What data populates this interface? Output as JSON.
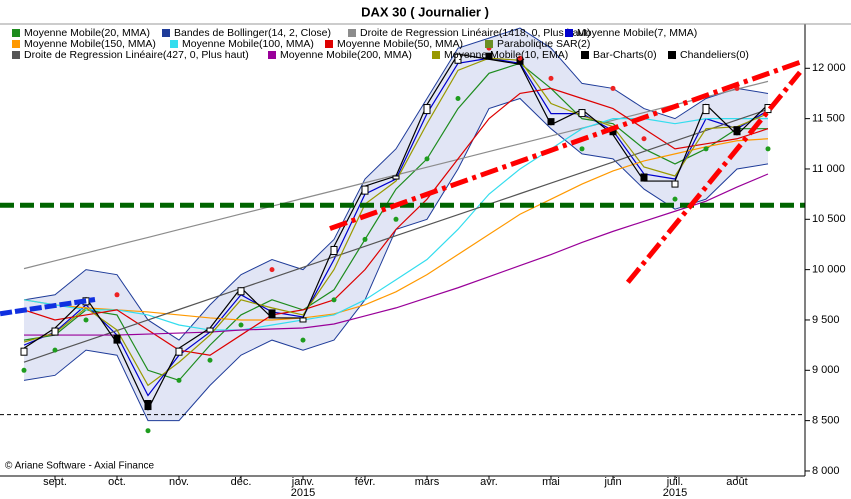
{
  "chart_data": {
    "type": "line",
    "title": "DAX 30  ( Journalier )",
    "credit": "© Ariane Software - Axial Finance",
    "categories": [
      null,
      "sept.",
      null,
      "oct.",
      null,
      "nov.",
      null,
      "déc.",
      null,
      "janv.\n2015",
      null,
      "févr.",
      null,
      "mars",
      null,
      "avr.",
      null,
      "mai",
      null,
      "juin",
      null,
      "juil.\n2015",
      null,
      "août",
      null
    ],
    "ylim": [
      7950,
      12440
    ],
    "yticks": [
      {
        "value": 8000,
        "label": "8 000"
      },
      {
        "value": 8500,
        "label": "8 500"
      },
      {
        "value": 9000,
        "label": "9 000"
      },
      {
        "value": 9500,
        "label": "9 500"
      },
      {
        "value": 10000,
        "label": "10 000"
      },
      {
        "value": 10500,
        "label": "10 500"
      },
      {
        "value": 11000,
        "label": "11 000"
      },
      {
        "value": 11500,
        "label": "11 500"
      },
      {
        "value": 12000,
        "label": "12 000"
      }
    ],
    "grid": false,
    "series": [
      {
        "name": "Moyenne Mobile(20, MMA)",
        "color": "#1e8c1e",
        "style": "line",
        "values": [
          9300,
          9350,
          9600,
          9550,
          9000,
          8900,
          9250,
          9550,
          9700,
          9600,
          9800,
          10300,
          10800,
          11100,
          11600,
          11950,
          12050,
          11800,
          11500,
          11450,
          11200,
          11050,
          11200,
          11400,
          11400
        ]
      },
      {
        "name": "Bandes de Bollinger(14, 2, Close)",
        "color": "#1f3c99",
        "style": "band",
        "upper": [
          9700,
          9750,
          10000,
          9950,
          9500,
          9300,
          9650,
          9950,
          10100,
          10000,
          10300,
          10900,
          11200,
          11700,
          12200,
          12300,
          12400,
          12200,
          11850,
          11800,
          11600,
          11500,
          11700,
          11800,
          11750
        ],
        "lower": [
          8900,
          8950,
          9200,
          9150,
          8500,
          8500,
          8850,
          9150,
          9300,
          9200,
          9300,
          9700,
          10400,
          10500,
          11000,
          11600,
          11700,
          11400,
          11150,
          11100,
          10800,
          10600,
          10700,
          11000,
          11050
        ]
      },
      {
        "name": "Droite de Regression Linéaire(1418, 0, Plus haut)",
        "color": "#8c8c8c",
        "style": "line",
        "values": [
          10010,
          10088,
          10165,
          10243,
          10320,
          10398,
          10475,
          10553,
          10630,
          10708,
          10785,
          10863,
          10940,
          11018,
          11095,
          11173,
          11250,
          11328,
          11405,
          11483,
          11560,
          11638,
          11715,
          11793,
          11870
        ]
      },
      {
        "name": "Moyenne Mobile(7, MMA)",
        "color": "#0000cc",
        "style": "line",
        "values": [
          9250,
          9380,
          9650,
          9350,
          8750,
          9150,
          9380,
          9750,
          9580,
          9530,
          10100,
          10750,
          10900,
          11550,
          12050,
          12100,
          12050,
          11550,
          11550,
          11380,
          10950,
          10900,
          11500,
          11400,
          11580
        ]
      },
      {
        "name": "Moyenne Mobile(150, MMA)",
        "color": "#ff9900",
        "style": "line",
        "values": [
          9700,
          9650,
          9620,
          9600,
          9580,
          9550,
          9520,
          9500,
          9500,
          9520,
          9560,
          9650,
          9780,
          9950,
          10150,
          10350,
          10550,
          10700,
          10850,
          10980,
          11080,
          11150,
          11220,
          11280,
          11300
        ]
      },
      {
        "name": "Moyenne Mobile(100, MMA)",
        "color": "#33ddee",
        "style": "line",
        "values": [
          9700,
          9650,
          9600,
          9600,
          9550,
          9450,
          9400,
          9400,
          9450,
          9500,
          9550,
          9700,
          9900,
          10100,
          10400,
          10750,
          11000,
          11200,
          11400,
          11500,
          11500,
          11450,
          11500,
          11500,
          11500
        ]
      },
      {
        "name": "Moyenne Mobile(50, MMA)",
        "color": "#dd0000",
        "style": "line",
        "values": [
          9600,
          9500,
          9550,
          9600,
          9400,
          9200,
          9150,
          9350,
          9550,
          9600,
          9700,
          10000,
          10400,
          10700,
          11100,
          11500,
          11750,
          11800,
          11700,
          11600,
          11400,
          11200,
          11250,
          11300,
          11400
        ]
      },
      {
        "name": "Parabolique SAR(2)",
        "color": "#6b8e23",
        "style": "dots",
        "values": [
          9000,
          9200,
          9500,
          9750,
          8400,
          8900,
          9100,
          9450,
          10000,
          9300,
          9700,
          10300,
          10500,
          11100,
          11700,
          12200,
          12100,
          11900,
          11200,
          11800,
          11300,
          10700,
          11200,
          11800,
          11200
        ]
      },
      {
        "name": "Droite de Regression Linéaire(427, 0, Plus haut)",
        "color": "#555555",
        "style": "line",
        "values": [
          9081,
          9186,
          9290,
          9395,
          9500,
          9604,
          9709,
          9813,
          9918,
          10023,
          10127,
          10232,
          10337,
          10441,
          10546,
          10650,
          10755,
          10860,
          10964,
          11069,
          11174,
          11278,
          11383,
          11487,
          11592
        ]
      },
      {
        "name": "Moyenne Mobile(200, MMA)",
        "color": "#990099",
        "style": "line",
        "values": [
          9350,
          9350,
          9350,
          9350,
          9360,
          9370,
          9380,
          9400,
          9410,
          9420,
          9460,
          9540,
          9620,
          9720,
          9820,
          9930,
          10040,
          10150,
          10270,
          10380,
          10480,
          10580,
          10680,
          10820,
          10950
        ]
      },
      {
        "name": "Moyenne Mobile(10, EMA)",
        "color": "#999900",
        "style": "line",
        "values": [
          9280,
          9370,
          9620,
          9400,
          8850,
          9080,
          9350,
          9700,
          9620,
          9550,
          10000,
          10650,
          10880,
          11450,
          11980,
          12100,
          12080,
          11650,
          11530,
          11420,
          11020,
          10930,
          11400,
          11420,
          11550
        ]
      },
      {
        "name": "Bar-Charts(0)",
        "color": "#000000",
        "style": "line",
        "values": [
          9220,
          9420,
          9720,
          9270,
          8610,
          9220,
          9420,
          9820,
          9520,
          9520,
          10230,
          10830,
          10930,
          11640,
          12140,
          12090,
          12040,
          11440,
          11590,
          11340,
          10880,
          10880,
          11640,
          11340,
          11640
        ]
      },
      {
        "name": "Chandeliers(0)",
        "color": "#000000",
        "style": "candles",
        "open": [
          9150,
          9350,
          9650,
          9350,
          8700,
          9150,
          9380,
          9750,
          9600,
          9480,
          10150,
          10750,
          10900,
          11550,
          12050,
          12150,
          12100,
          11500,
          11520,
          11400,
          10950,
          10820,
          11550,
          11420,
          11560
        ],
        "values": [
          9220,
          9420,
          9720,
          9270,
          8610,
          9220,
          9420,
          9820,
          9520,
          9520,
          10230,
          10830,
          10930,
          11640,
          12140,
          12090,
          12040,
          11440,
          11590,
          11340,
          10880,
          10880,
          11640,
          11340,
          11640
        ]
      }
    ],
    "hlines": [
      {
        "value": 10640,
        "color": "#006400"
      },
      {
        "value": 8560,
        "color": "#000000"
      }
    ],
    "trendlines": [
      {
        "color": "#ff0000",
        "x": [
          9.87,
          25.03
        ],
        "values": [
          10408,
          12060
        ]
      },
      {
        "color": "#ff0000",
        "x": [
          19.48,
          25.03
        ],
        "values": [
          9874,
          11960
        ]
      },
      {
        "color": "#1030e0",
        "x": [
          -0.77,
          2.29
        ],
        "values": [
          9562,
          9703
        ]
      }
    ]
  }
}
